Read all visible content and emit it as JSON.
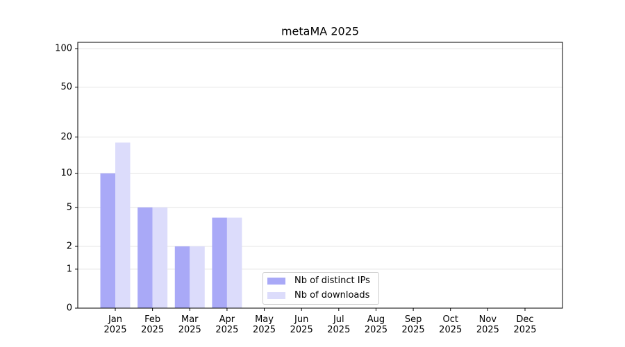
{
  "chart_data": {
    "type": "bar",
    "title": "metaMA 2025",
    "categories": [
      "Jan\n2025",
      "Feb\n2025",
      "Mar\n2025",
      "Apr\n2025",
      "May\n2025",
      "Jun\n2025",
      "Jul\n2025",
      "Aug\n2025",
      "Sep\n2025",
      "Oct\n2025",
      "Nov\n2025",
      "Dec\n2025"
    ],
    "series": [
      {
        "name": "Nb of distinct IPs",
        "color": "#a9a9f7",
        "values": [
          10,
          5,
          2,
          4,
          0,
          0,
          0,
          0,
          0,
          0,
          0,
          0
        ]
      },
      {
        "name": "Nb of downloads",
        "color": "#dcdcfb",
        "values": [
          18,
          5,
          2,
          4,
          0,
          0,
          0,
          0,
          0,
          0,
          0,
          0
        ]
      }
    ],
    "yscale": "log1p",
    "ylim": [
      0,
      112
    ],
    "yticks": [
      0,
      1,
      2,
      5,
      10,
      20,
      50,
      100
    ],
    "grid": true,
    "legend": "lower center"
  }
}
